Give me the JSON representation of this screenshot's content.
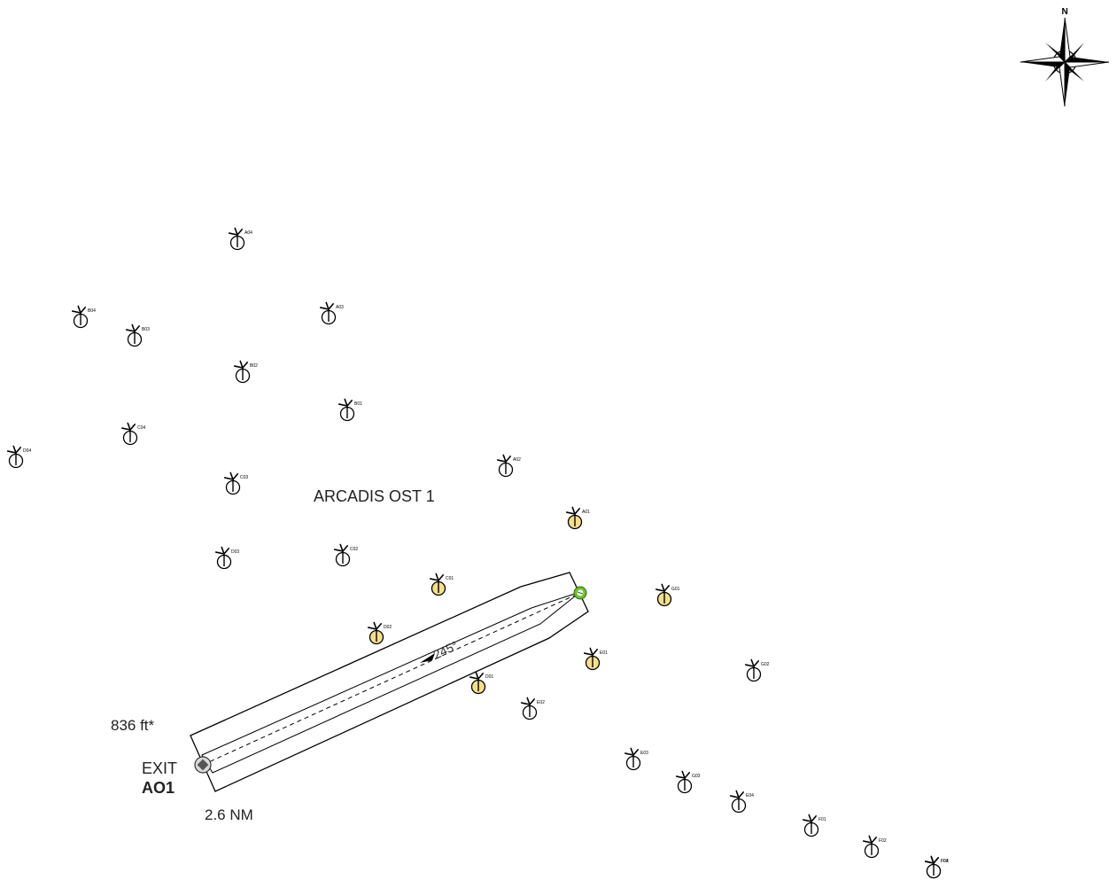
{
  "colors": {
    "line": "#000000",
    "highlight_fill": "#f7df8a",
    "entry_point": "#6cc12a",
    "exit_point": "#555555"
  },
  "map": {
    "farm_name": "ARCADIS OST 1",
    "corridor": {
      "heading_label": "245°",
      "width_label": "836 ft*",
      "length_label": "2.6 NM",
      "exit_label": "EXIT",
      "exit_code": "AO1"
    },
    "compass": {
      "north_label": "N",
      "icon": "compass-rose-icon"
    }
  },
  "turbines": [
    {
      "id": "A04",
      "highlighted": false
    },
    {
      "id": "A03",
      "highlighted": false
    },
    {
      "id": "B04",
      "highlighted": false
    },
    {
      "id": "B03",
      "highlighted": false
    },
    {
      "id": "B02",
      "highlighted": false
    },
    {
      "id": "B01",
      "highlighted": false
    },
    {
      "id": "C04",
      "highlighted": false
    },
    {
      "id": "D04",
      "highlighted": false
    },
    {
      "id": "C03",
      "highlighted": false
    },
    {
      "id": "A02",
      "highlighted": false
    },
    {
      "id": "A01",
      "highlighted": true
    },
    {
      "id": "D03",
      "highlighted": false
    },
    {
      "id": "C02",
      "highlighted": false
    },
    {
      "id": "C01",
      "highlighted": true
    },
    {
      "id": "G01",
      "highlighted": true
    },
    {
      "id": "D02",
      "highlighted": true
    },
    {
      "id": "E01",
      "highlighted": true
    },
    {
      "id": "G02",
      "highlighted": false
    },
    {
      "id": "D01",
      "highlighted": true
    },
    {
      "id": "E02",
      "highlighted": false
    },
    {
      "id": "E03",
      "highlighted": false
    },
    {
      "id": "G03",
      "highlighted": false
    },
    {
      "id": "E04",
      "highlighted": false
    },
    {
      "id": "F01",
      "highlighted": false
    },
    {
      "id": "F02",
      "highlighted": false
    },
    {
      "id": "F03",
      "highlighted": false
    },
    {
      "id": "F04",
      "highlighted": false
    }
  ]
}
